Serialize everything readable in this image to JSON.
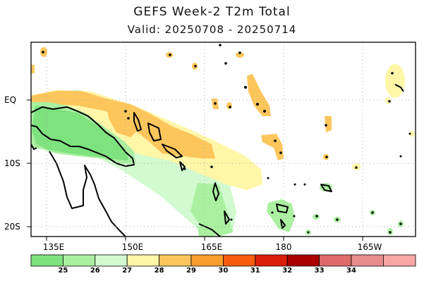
{
  "header": {
    "title": "GEFS Week-2 T2m Total",
    "valid": "Valid: 20250708 - 20250714"
  },
  "axes": {
    "lat_labels": [
      "EQ",
      "10S",
      "20S"
    ],
    "lon_labels": [
      "135E",
      "150E",
      "165E",
      "180",
      "165W"
    ]
  },
  "colorbar": {
    "colors": [
      "#7ee27e",
      "#aaf0a0",
      "#d2fad0",
      "#fff6a8",
      "#fdc65c",
      "#f99d2c",
      "#f55c0e",
      "#db1e0a",
      "#aa0000",
      "#de6a6a",
      "#e88c8c",
      "#f8a6a6"
    ],
    "labels": [
      "25",
      "26",
      "27",
      "28",
      "29",
      "30",
      "31",
      "32",
      "33",
      "34"
    ]
  }
}
